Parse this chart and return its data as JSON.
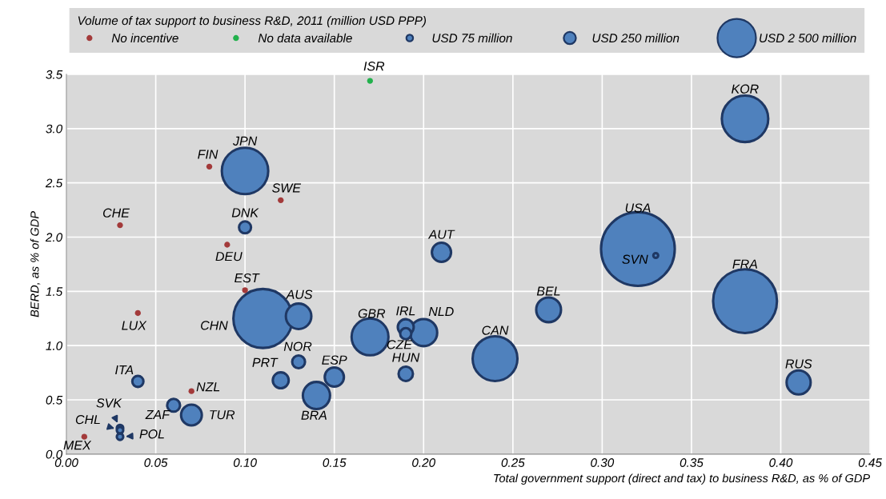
{
  "chart_data": {
    "type": "bubble",
    "legend_title": "Volume of tax support to business R&D, 2011 (million USD PPP)",
    "xlabel": "Total government support (direct and tax) to business R&D, as % of GDP",
    "ylabel": "BERD, as % of GDP",
    "xlim": [
      0,
      0.45
    ],
    "xticks": [
      {
        "value": 0,
        "label": "0.00"
      },
      0.05,
      {
        "value": 0.1,
        "label": "0.10"
      },
      0.15,
      {
        "value": 0.2,
        "label": "0.20"
      },
      0.25,
      {
        "value": 0.3,
        "label": "0.30"
      },
      0.35,
      {
        "value": 0.4,
        "label": "0.40"
      },
      0.45
    ],
    "ylim": [
      0,
      3.5
    ],
    "yticks": [
      {
        "value": 0,
        "label": "0.0"
      },
      0.5,
      {
        "value": 1,
        "label": "1.0"
      },
      1.5,
      {
        "value": 2,
        "label": "2.0"
      },
      2.5,
      {
        "value": 3,
        "label": "3.0"
      },
      3.5
    ],
    "grid": true,
    "legend": "top",
    "size_legend": [
      {
        "value": 75,
        "label": "USD 75 million"
      },
      {
        "value": 250,
        "label": "USD 250 million"
      },
      {
        "value": 2500,
        "label": "USD 2 500 million"
      }
    ],
    "series": [
      {
        "name": "No incentive",
        "type": "scatter",
        "color": "#a33a3a",
        "x": [
          0.08,
          0.12,
          0.03,
          0.09,
          0.1,
          0.04,
          0.07,
          0.01
        ],
        "values": [
          2.65,
          2.34,
          2.11,
          1.93,
          1.51,
          1.3,
          0.58,
          0.16
        ]
      },
      {
        "name": "No data available",
        "type": "scatter",
        "color": "#22b14c",
        "x": [
          0.17
        ],
        "values": [
          3.44
        ]
      },
      {
        "type": "bubble",
        "color": "#4f81bd",
        "x": [
          0.32,
          0.38,
          0.11,
          0.1,
          0.38,
          0.24,
          0.17,
          0.14,
          0.2,
          0.13,
          0.27,
          0.41,
          0.21,
          0.15,
          0.07,
          0.19,
          0.12,
          0.19,
          0.06,
          0.13,
          0.1,
          0.19,
          0.04,
          0.03,
          0.03,
          0.03,
          0.33
        ],
        "values": [
          1.89,
          1.41,
          1.25,
          2.61,
          3.09,
          0.88,
          1.08,
          0.54,
          1.12,
          1.27,
          1.33,
          0.66,
          1.86,
          0.71,
          0.36,
          1.17,
          0.68,
          0.74,
          0.45,
          0.85,
          2.09,
          1.11,
          0.67,
          0.24,
          0.22,
          0.16,
          1.83
        ],
        "sizes": [
          9200,
          6900,
          5900,
          3650,
          3650,
          3400,
          2300,
          1250,
          1250,
          1100,
          1040,
          980,
          625,
          625,
          730,
          430,
          430,
          350,
          280,
          280,
          245,
          210,
          210,
          70,
          70,
          70,
          40
        ]
      }
    ],
    "annotations": [
      {
        "text": "ISR",
        "x": 0.17,
        "y": 3.44
      },
      {
        "text": "KOR",
        "x": 0.38,
        "y": 3.09
      },
      {
        "text": "JPN",
        "x": 0.1,
        "y": 2.61
      },
      {
        "text": "FIN",
        "x": 0.08,
        "y": 2.65
      },
      {
        "text": "SWE",
        "x": 0.12,
        "y": 2.34
      },
      {
        "text": "CHE",
        "x": 0.03,
        "y": 2.11
      },
      {
        "text": "DNK",
        "x": 0.1,
        "y": 2.09
      },
      {
        "text": "DEU",
        "x": 0.09,
        "y": 1.93
      },
      {
        "text": "EST",
        "x": 0.1,
        "y": 1.51
      },
      {
        "text": "USA",
        "x": 0.32,
        "y": 1.89
      },
      {
        "text": "SVN",
        "x": 0.33,
        "y": 1.83
      },
      {
        "text": "AUT",
        "x": 0.21,
        "y": 1.86
      },
      {
        "text": "FRA",
        "x": 0.38,
        "y": 1.41
      },
      {
        "text": "LUX",
        "x": 0.04,
        "y": 1.3
      },
      {
        "text": "CHN",
        "x": 0.11,
        "y": 1.25
      },
      {
        "text": "AUS",
        "x": 0.13,
        "y": 1.27
      },
      {
        "text": "GBR",
        "x": 0.17,
        "y": 1.08
      },
      {
        "text": "IRL",
        "x": 0.19,
        "y": 1.17
      },
      {
        "text": "NLD",
        "x": 0.2,
        "y": 1.12
      },
      {
        "text": "CZE",
        "x": 0.19,
        "y": 1.11
      },
      {
        "text": "BEL",
        "x": 0.27,
        "y": 1.33
      },
      {
        "text": "CAN",
        "x": 0.24,
        "y": 0.88
      },
      {
        "text": "NOR",
        "x": 0.13,
        "y": 0.85
      },
      {
        "text": "PRT",
        "x": 0.12,
        "y": 0.68
      },
      {
        "text": "HUN",
        "x": 0.19,
        "y": 0.74
      },
      {
        "text": "ESP",
        "x": 0.15,
        "y": 0.71
      },
      {
        "text": "RUS",
        "x": 0.41,
        "y": 0.66
      },
      {
        "text": "ITA",
        "x": 0.04,
        "y": 0.67
      },
      {
        "text": "NZL",
        "x": 0.07,
        "y": 0.58
      },
      {
        "text": "ZAF",
        "x": 0.06,
        "y": 0.45
      },
      {
        "text": "TUR",
        "x": 0.07,
        "y": 0.36
      },
      {
        "text": "BRA",
        "x": 0.14,
        "y": 0.54
      },
      {
        "text": "SVK",
        "x": 0.03,
        "y": 0.24
      },
      {
        "text": "CHL",
        "x": 0.03,
        "y": 0.22
      },
      {
        "text": "POL",
        "x": 0.03,
        "y": 0.16
      },
      {
        "text": "MEX",
        "x": 0.01,
        "y": 0.16
      }
    ]
  }
}
